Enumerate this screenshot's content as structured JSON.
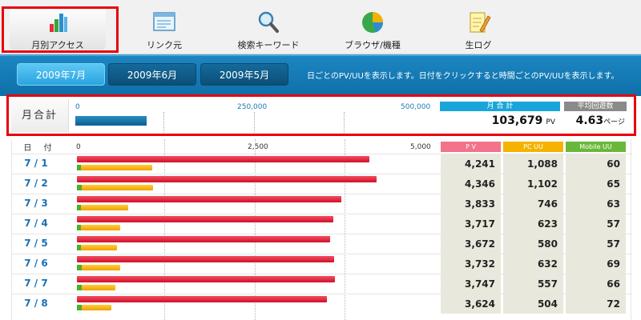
{
  "nav": [
    {
      "label": "月別アクセス",
      "icon": "bar-chart-icon",
      "active": true
    },
    {
      "label": "リンク元",
      "icon": "window-icon",
      "active": false
    },
    {
      "label": "検索キーワード",
      "icon": "magnifier-icon",
      "active": false
    },
    {
      "label": "ブラウザ/機種",
      "icon": "pie-chart-icon",
      "active": false
    },
    {
      "label": "生ログ",
      "icon": "memo-pencil-icon",
      "active": false
    }
  ],
  "months": [
    "2009年7月",
    "2009年6月",
    "2009年5月"
  ],
  "note": "日ごとのPV/UUを表示します。日付をクリックすると時間ごとのPV/UUを表示します。",
  "summary": {
    "label": "月合計",
    "scale": [
      "0",
      "250,000",
      "500,000"
    ],
    "pv_header": "月 合 計",
    "avg_header": "平均回遊数",
    "pv_value": "103,679",
    "pv_unit": "PV",
    "avg_value": "4.63",
    "avg_unit": "ページ",
    "bar_value": 103679,
    "bar_max": 500000
  },
  "table": {
    "date_header": "日 付",
    "scale": [
      "0",
      "2,500",
      "5,000"
    ],
    "max": 5000,
    "col_pv": "P V",
    "col_pc": "PC UU",
    "col_mobile": "Mobile UU",
    "rows": [
      {
        "date": "7 / 1",
        "pv": "4,241",
        "pc": "1,088",
        "mb": "60"
      },
      {
        "date": "7 / 2",
        "pv": "4,346",
        "pc": "1,102",
        "mb": "65"
      },
      {
        "date": "7 / 3",
        "pv": "3,833",
        "pc": "746",
        "mb": "63"
      },
      {
        "date": "7 / 4",
        "pv": "3,717",
        "pc": "623",
        "mb": "57"
      },
      {
        "date": "7 / 5",
        "pv": "3,672",
        "pc": "580",
        "mb": "57"
      },
      {
        "date": "7 / 6",
        "pv": "3,732",
        "pc": "632",
        "mb": "69"
      },
      {
        "date": "7 / 7",
        "pv": "3,747",
        "pc": "557",
        "mb": "66"
      },
      {
        "date": "7 / 8",
        "pv": "3,624",
        "pc": "504",
        "mb": "72"
      }
    ]
  },
  "colors": {
    "pv": "#d81a32",
    "pc": "#f5b000",
    "mobile": "#49b030",
    "summary_bar": "#1a7bb0",
    "highlight": "#e8000b"
  }
}
